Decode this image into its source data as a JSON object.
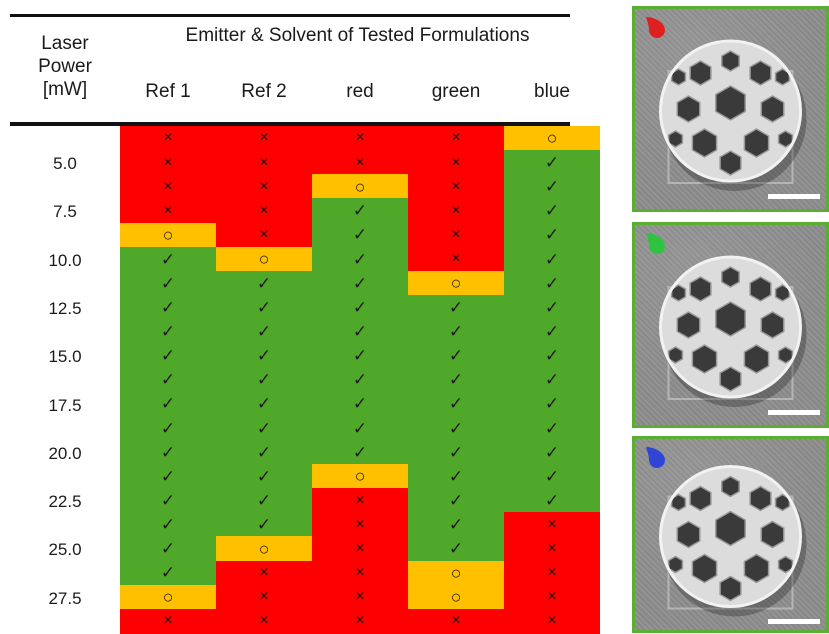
{
  "header": {
    "laser_power": "Laser\nPower\n[mW]",
    "laser_line1": "Laser",
    "laser_line2": "Power",
    "laser_line3": "[mW]",
    "emitter_title": "Emitter & Solvent of Tested Formulations",
    "columns": [
      "Ref 1",
      "Ref 2",
      "red",
      "green",
      "blue"
    ]
  },
  "laser_power_labels": [
    "5.0",
    "7.5",
    "10.0",
    "12.5",
    "15.0",
    "17.5",
    "20.0",
    "22.5",
    "25.0",
    "27.5"
  ],
  "symbols": {
    "fail": "×",
    "pass": "✓",
    "threshold": "○"
  },
  "colors": {
    "fail": "#ff0000",
    "pass": "#4fa82a",
    "threshold": "#ffc000",
    "frame": "#5aae32"
  },
  "legend_drops": [
    {
      "name": "red-drop-icon",
      "color": "#e02020"
    },
    {
      "name": "green-drop-icon",
      "color": "#2ec441"
    },
    {
      "name": "blue-drop-icon",
      "color": "#2f45d6"
    }
  ],
  "columns_data": [
    [
      "fail",
      "fail",
      "fail",
      "fail",
      "threshold",
      "pass",
      "pass",
      "pass",
      "pass",
      "pass",
      "pass",
      "pass",
      "pass",
      "pass",
      "pass",
      "pass",
      "pass",
      "pass",
      "pass",
      "threshold",
      "fail"
    ],
    [
      "fail",
      "fail",
      "fail",
      "fail",
      "fail",
      "threshold",
      "pass",
      "pass",
      "pass",
      "pass",
      "pass",
      "pass",
      "pass",
      "pass",
      "pass",
      "pass",
      "pass",
      "threshold",
      "fail",
      "fail",
      "fail"
    ],
    [
      "fail",
      "fail",
      "threshold",
      "pass",
      "pass",
      "pass",
      "pass",
      "pass",
      "pass",
      "pass",
      "pass",
      "pass",
      "pass",
      "pass",
      "threshold",
      "fail",
      "fail",
      "fail",
      "fail",
      "fail",
      "fail"
    ],
    [
      "fail",
      "fail",
      "fail",
      "fail",
      "fail",
      "fail",
      "threshold",
      "pass",
      "pass",
      "pass",
      "pass",
      "pass",
      "pass",
      "pass",
      "pass",
      "pass",
      "pass",
      "pass",
      "threshold",
      "threshold",
      "fail"
    ],
    [
      "threshold",
      "pass",
      "pass",
      "pass",
      "pass",
      "pass",
      "pass",
      "pass",
      "pass",
      "pass",
      "pass",
      "pass",
      "pass",
      "pass",
      "pass",
      "pass",
      "fail",
      "fail",
      "fail",
      "fail",
      "fail"
    ]
  ]
}
